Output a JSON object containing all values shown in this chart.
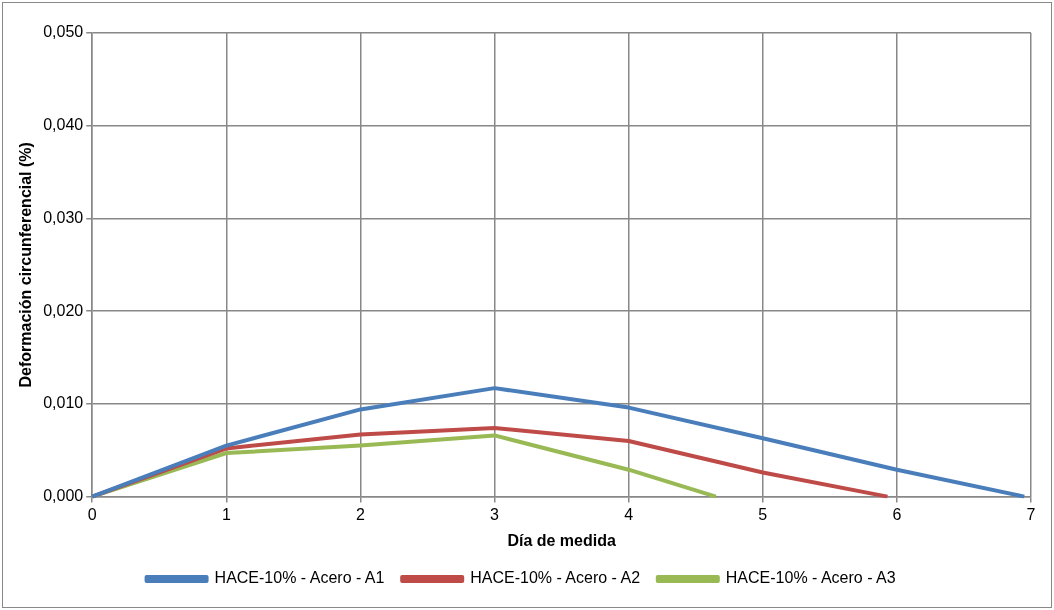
{
  "chart_data": {
    "type": "line",
    "xlabel": "Día de medida",
    "ylabel": "Deformación circunferencial (%)",
    "xlim": [
      0,
      7
    ],
    "xticks": [
      0,
      1,
      2,
      3,
      4,
      5,
      6,
      7
    ],
    "ylim": [
      0,
      0.05
    ],
    "yticks": [
      {
        "value": 0,
        "label": "0,000"
      },
      {
        "value": 0.01,
        "label": "0,010"
      },
      {
        "value": 0.02,
        "label": "0,020"
      },
      {
        "value": 0.03,
        "label": "0,030"
      },
      {
        "value": 0.04,
        "label": "0,040"
      },
      {
        "value": 0.05,
        "label": "0,050"
      }
    ],
    "grid": true,
    "legend": "bottom",
    "marker": "none",
    "series": [
      {
        "name": "HACE-10% - Acero - A1",
        "color": "#4a7ebb",
        "x": [
          0,
          1,
          2,
          3,
          4,
          5,
          6,
          6.95
        ],
        "values": [
          0,
          0.0055,
          0.0094,
          0.0117,
          0.0096,
          0.0063,
          0.0029,
          0
        ]
      },
      {
        "name": "HACE-10% - Acero - A2",
        "color": "#be4b48",
        "x": [
          0,
          1,
          2,
          3,
          4,
          5,
          5.93
        ],
        "values": [
          0,
          0.0052,
          0.0067,
          0.0074,
          0.006,
          0.0026,
          0
        ]
      },
      {
        "name": "HACE-10% - Acero - A3",
        "color": "#98b954",
        "x": [
          0,
          1,
          2,
          3,
          4,
          4.65
        ],
        "values": [
          0,
          0.0047,
          0.0055,
          0.0066,
          0.0029,
          0
        ]
      }
    ]
  }
}
